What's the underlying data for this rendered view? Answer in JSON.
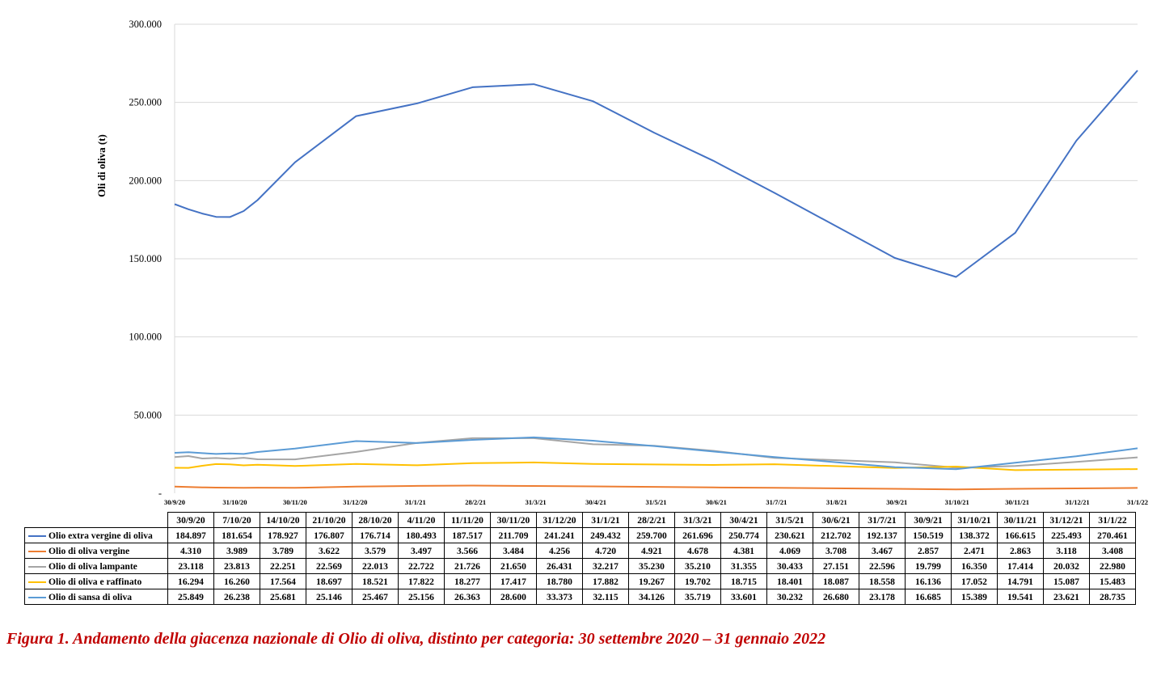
{
  "chart_data": {
    "type": "line",
    "title": "",
    "ylabel": "Oli di oliva (t)",
    "xlabel": "",
    "ylim": [
      0,
      300000
    ],
    "yticks": [
      0,
      50000,
      100000,
      150000,
      200000,
      250000,
      300000
    ],
    "ytick_labels": [
      "-",
      "50.000",
      "100.000",
      "150.000",
      "200.000",
      "250.000",
      "300.000"
    ],
    "xaxis_tick_labels": [
      "30/9/20",
      "31/10/20",
      "30/11/20",
      "31/12/20",
      "31/1/21",
      "28/2/21",
      "31/3/21",
      "30/4/21",
      "31/5/21",
      "30/6/21",
      "31/7/21",
      "31/8/21",
      "30/9/21",
      "31/10/21",
      "30/11/21",
      "31/12/21",
      "31/1/22"
    ],
    "dates": [
      "2020-09-30",
      "2020-10-07",
      "2020-10-14",
      "2020-10-21",
      "2020-10-28",
      "2020-11-04",
      "2020-11-11",
      "2020-11-30",
      "2020-12-31",
      "2021-01-31",
      "2021-02-28",
      "2021-03-31",
      "2021-04-30",
      "2021-05-31",
      "2021-06-30",
      "2021-07-31",
      "2021-09-30",
      "2021-10-31",
      "2021-11-30",
      "2021-12-31",
      "2022-01-31"
    ],
    "table_headers": [
      "30/9/20",
      "7/10/20",
      "14/10/20",
      "21/10/20",
      "28/10/20",
      "4/11/20",
      "11/11/20",
      "30/11/20",
      "31/12/20",
      "31/1/21",
      "28/2/21",
      "31/3/21",
      "30/4/21",
      "31/5/21",
      "30/6/21",
      "31/7/21",
      "30/9/21",
      "31/10/21",
      "30/11/21",
      "31/12/21",
      "31/1/22"
    ],
    "grid": "horizontal",
    "legend": "table-bottom",
    "series": [
      {
        "name": "Olio extra vergine di oliva",
        "color": "#4472c4",
        "values": [
          184897,
          181654,
          178927,
          176807,
          176714,
          180493,
          187517,
          211709,
          241241,
          249432,
          259700,
          261696,
          250774,
          230621,
          212702,
          192137,
          150519,
          138372,
          166615,
          225493,
          270461
        ],
        "labels": [
          "184.897",
          "181.654",
          "178.927",
          "176.807",
          "176.714",
          "180.493",
          "187.517",
          "211.709",
          "241.241",
          "249.432",
          "259.700",
          "261.696",
          "250.774",
          "230.621",
          "212.702",
          "192.137",
          "150.519",
          "138.372",
          "166.615",
          "225.493",
          "270.461"
        ]
      },
      {
        "name": "Olio di oliva vergine",
        "color": "#ed7d31",
        "values": [
          4310,
          3989,
          3789,
          3622,
          3579,
          3497,
          3566,
          3484,
          4256,
          4720,
          4921,
          4678,
          4381,
          4069,
          3708,
          3467,
          2857,
          2471,
          2863,
          3118,
          3408
        ],
        "labels": [
          "4.310",
          "3.989",
          "3.789",
          "3.622",
          "3.579",
          "3.497",
          "3.566",
          "3.484",
          "4.256",
          "4.720",
          "4.921",
          "4.678",
          "4.381",
          "4.069",
          "3.708",
          "3.467",
          "2.857",
          "2.471",
          "2.863",
          "3.118",
          "3.408"
        ]
      },
      {
        "name": "Olio di oliva lampante",
        "color": "#a5a5a5",
        "values": [
          23118,
          23813,
          22251,
          22569,
          22013,
          22722,
          21726,
          21650,
          26431,
          32217,
          35230,
          35210,
          31355,
          30433,
          27151,
          22596,
          19799,
          16350,
          17414,
          20032,
          22980
        ],
        "labels": [
          "23.118",
          "23.813",
          "22.251",
          "22.569",
          "22.013",
          "22.722",
          "21.726",
          "21.650",
          "26.431",
          "32.217",
          "35.230",
          "35.210",
          "31.355",
          "30.433",
          "27.151",
          "22.596",
          "19.799",
          "16.350",
          "17.414",
          "20.032",
          "22.980"
        ]
      },
      {
        "name": "Olio di oliva e raffinato",
        "color": "#ffc000",
        "values": [
          16294,
          16260,
          17564,
          18697,
          18521,
          17822,
          18277,
          17417,
          18780,
          17882,
          19267,
          19702,
          18715,
          18401,
          18087,
          18558,
          16136,
          17052,
          14791,
          15087,
          15483
        ],
        "labels": [
          "16.294",
          "16.260",
          "17.564",
          "18.697",
          "18.521",
          "17.822",
          "18.277",
          "17.417",
          "18.780",
          "17.882",
          "19.267",
          "19.702",
          "18.715",
          "18.401",
          "18.087",
          "18.558",
          "16.136",
          "17.052",
          "14.791",
          "15.087",
          "15.483"
        ]
      },
      {
        "name": "Olio di sansa di oliva",
        "color": "#5b9bd5",
        "values": [
          25849,
          26238,
          25681,
          25146,
          25467,
          25156,
          26363,
          28600,
          33373,
          32115,
          34126,
          35719,
          33601,
          30232,
          26680,
          23178,
          16685,
          15389,
          19541,
          23621,
          28735
        ],
        "labels": [
          "25.849",
          "26.238",
          "25.681",
          "25.146",
          "25.467",
          "25.156",
          "26.363",
          "28.600",
          "33.373",
          "32.115",
          "34.126",
          "35.719",
          "33.601",
          "30.232",
          "26.680",
          "23.178",
          "16.685",
          "15.389",
          "19.541",
          "23.621",
          "28.735"
        ]
      }
    ]
  },
  "caption": "Figura 1. Andamento della giacenza nazionale di Olio di oliva, distinto per categoria: 30 settembre 2020 – 31 gennaio 2022"
}
